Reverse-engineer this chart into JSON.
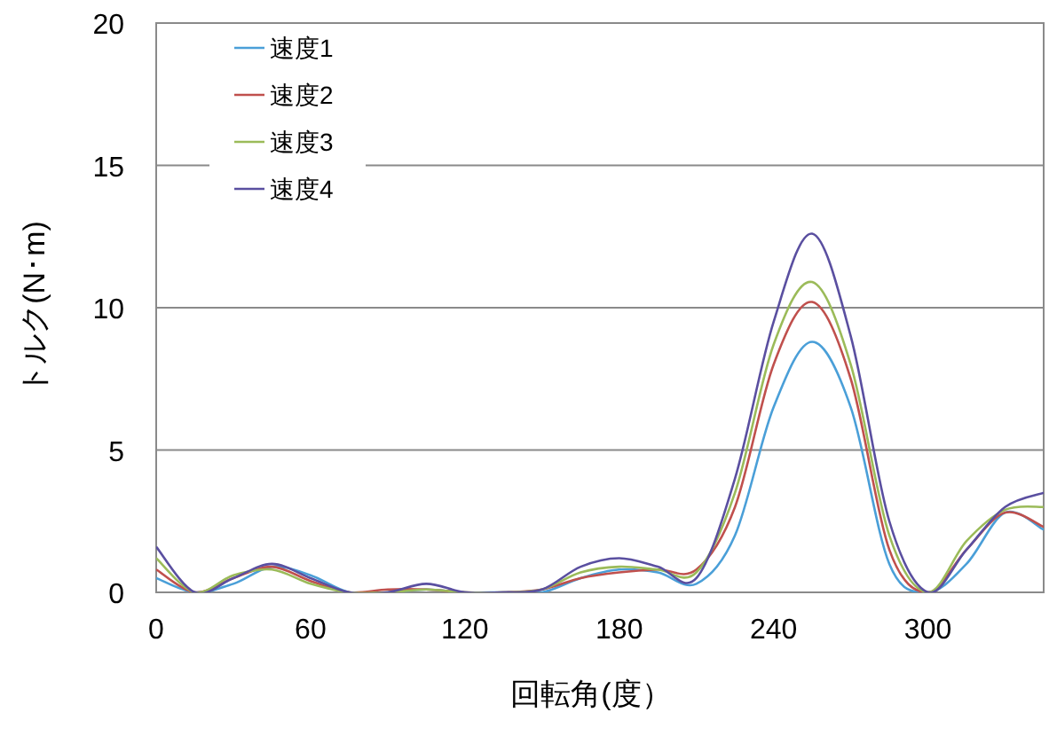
{
  "chart_data": {
    "type": "line",
    "xlabel": "回転角(度）",
    "ylabel": "トルク(N･m)",
    "x": [
      0,
      15,
      30,
      45,
      60,
      75,
      90,
      105,
      120,
      135,
      150,
      165,
      180,
      195,
      210,
      225,
      240,
      255,
      270,
      285,
      300,
      315,
      330,
      345
    ],
    "series": [
      {
        "name": "速度1",
        "color": "#4a9fd8",
        "values": [
          0.5,
          0,
          0.3,
          0.9,
          0.6,
          0,
          0,
          0.1,
          0,
          0,
          0,
          0.5,
          0.8,
          0.7,
          0.3,
          2.0,
          6.5,
          8.8,
          6.5,
          1.0,
          0,
          1.0,
          2.8,
          2.2
        ]
      },
      {
        "name": "速度2",
        "color": "#c0504d",
        "values": [
          0.8,
          0,
          0.5,
          0.9,
          0.4,
          0,
          0.1,
          0.1,
          0,
          0,
          0.1,
          0.5,
          0.7,
          0.8,
          0.8,
          3.0,
          8.0,
          10.2,
          7.5,
          1.5,
          0,
          1.5,
          2.8,
          2.3
        ]
      },
      {
        "name": "速度3",
        "color": "#9bbb59",
        "values": [
          1.2,
          0,
          0.6,
          0.8,
          0.3,
          0,
          0,
          0.1,
          0,
          0,
          0.1,
          0.7,
          0.9,
          0.8,
          0.7,
          3.5,
          8.7,
          10.9,
          8.0,
          2.0,
          0,
          1.8,
          2.9,
          3.0
        ]
      },
      {
        "name": "速度4",
        "color": "#5a4fa0",
        "values": [
          1.6,
          0,
          0.5,
          1.0,
          0.5,
          0,
          0,
          0.3,
          0,
          0,
          0.1,
          0.9,
          1.2,
          0.9,
          0.5,
          4.0,
          9.5,
          12.6,
          9.0,
          2.5,
          0,
          1.5,
          3.0,
          3.5
        ]
      }
    ],
    "xlim": [
      0,
      345
    ],
    "ylim": [
      0,
      20
    ],
    "xticks": [
      0,
      60,
      120,
      180,
      240,
      300
    ],
    "yticks": [
      0,
      5,
      10,
      15,
      20
    ],
    "grid": "y",
    "legend": "top left"
  }
}
